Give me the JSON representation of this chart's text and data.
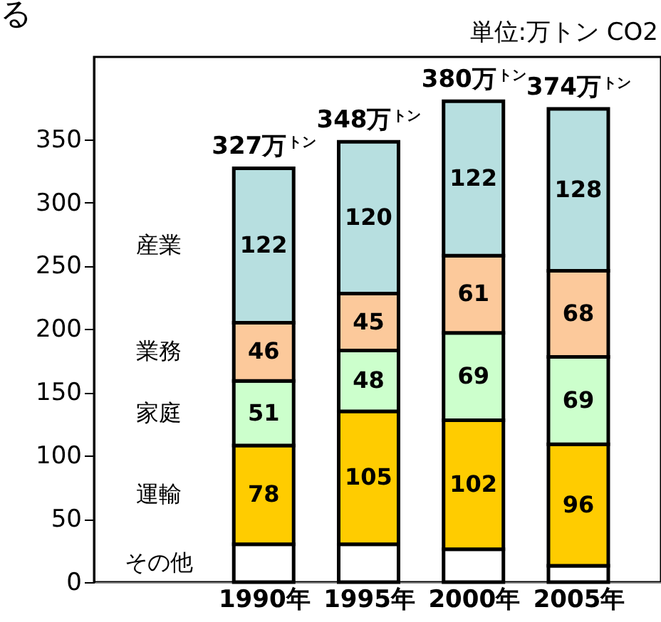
{
  "chart_data": {
    "type": "bar",
    "stacked": true,
    "subtitle": "単位:万トン  CO2",
    "annotations": [
      "る"
    ],
    "categories": [
      "1990年",
      "1995年",
      "2000年",
      "2005年"
    ],
    "series": [
      {
        "name": "その他",
        "color": "#ffffff",
        "values": [
          30,
          30,
          26,
          13
        ],
        "value_labels": [
          null,
          null,
          null,
          null
        ]
      },
      {
        "name": "運輸",
        "color": "#ffcc00",
        "values": [
          78,
          105,
          102,
          96
        ],
        "value_labels": [
          "78",
          "105",
          "102",
          "96"
        ]
      },
      {
        "name": "家庭",
        "color": "#ccffcc",
        "values": [
          51,
          48,
          69,
          69
        ],
        "value_labels": [
          "51",
          "48",
          "69",
          "69"
        ]
      },
      {
        "name": "業務",
        "color": "#fcc99b",
        "values": [
          46,
          45,
          61,
          68
        ],
        "value_labels": [
          "46",
          "45",
          "61",
          "68"
        ]
      },
      {
        "name": "産業",
        "color": "#b7dfe0",
        "values": [
          122,
          120,
          122,
          128
        ],
        "value_labels": [
          "122",
          "120",
          "122",
          "128"
        ]
      }
    ],
    "totals": [
      "327万$^{トン}$",
      "348万$^{トン}$",
      "380万$^{トン}$",
      "374万$^{トン}$"
    ],
    "ylim": [
      0,
      415
    ],
    "yticks": [
      0,
      50,
      100,
      150,
      200,
      250,
      300,
      350
    ],
    "grid": false
  }
}
